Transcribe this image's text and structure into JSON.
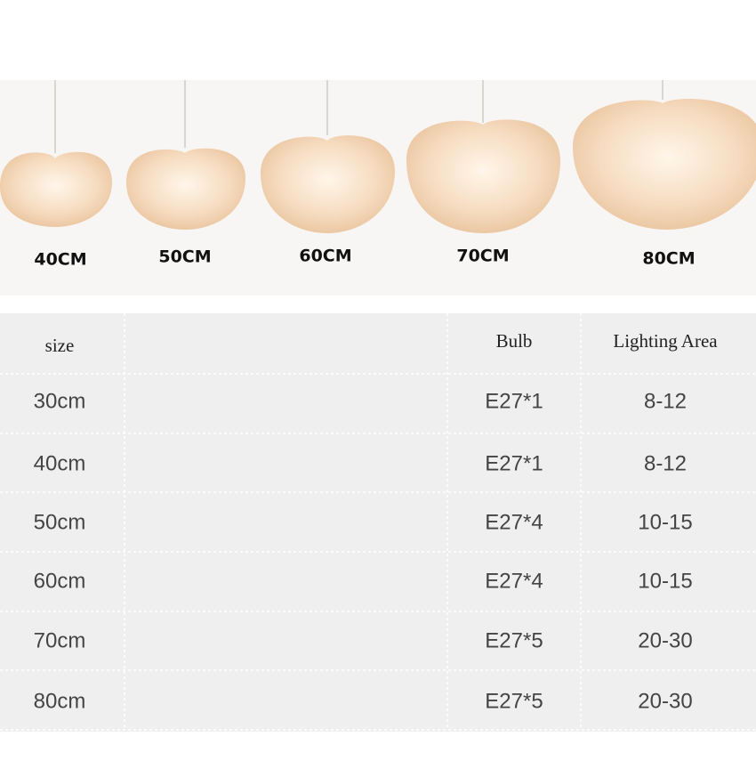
{
  "photo": {
    "labels": [
      "40CM",
      "50CM",
      "60CM",
      "70CM",
      "80CM"
    ]
  },
  "table": {
    "columns": [
      "size",
      "Bulb",
      "Lighting Area"
    ],
    "rows": [
      [
        "30cm",
        "E27*1",
        "8-12"
      ],
      [
        "40cm",
        "E27*1",
        "8-12"
      ],
      [
        "50cm",
        "E27*4",
        "10-15"
      ],
      [
        "60cm",
        "E27*4",
        "10-15"
      ],
      [
        "70cm",
        "E27*5",
        "20-30"
      ],
      [
        "80cm",
        "E27*5",
        "20-30"
      ]
    ]
  }
}
